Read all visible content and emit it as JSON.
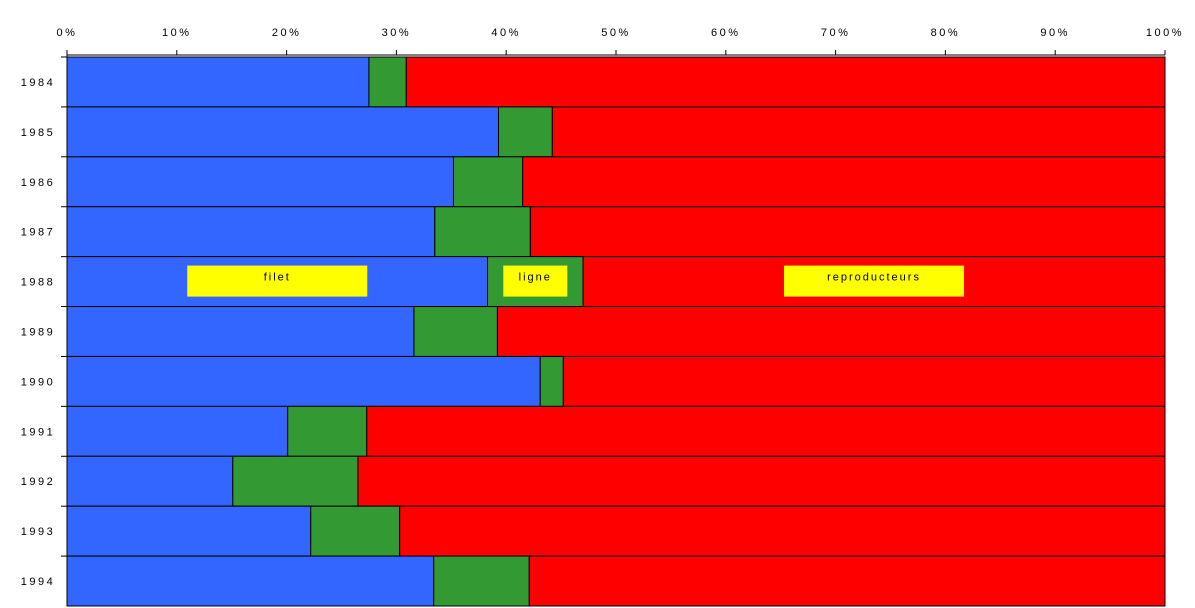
{
  "chart_data": {
    "type": "bar",
    "orientation": "horizontal",
    "stacked": "percent",
    "categories": [
      "1984",
      "1985",
      "1986",
      "1987",
      "1988",
      "1989",
      "1990",
      "1991",
      "1992",
      "1993",
      "1994"
    ],
    "series": [
      {
        "name": "filet",
        "color": "#3366ff",
        "values": [
          27.5,
          39.3,
          35.2,
          33.5,
          38.3,
          31.6,
          43.1,
          20.1,
          15.1,
          22.2,
          33.4
        ]
      },
      {
        "name": "ligne",
        "color": "#339933",
        "values": [
          3.4,
          4.9,
          6.3,
          8.7,
          8.7,
          7.6,
          2.1,
          7.2,
          11.4,
          8.1,
          8.7
        ]
      },
      {
        "name": "reproducteurs",
        "color": "#ff0000",
        "values": [
          69.1,
          55.8,
          58.5,
          57.8,
          53.0,
          60.8,
          54.8,
          72.7,
          73.5,
          69.7,
          57.9
        ]
      }
    ],
    "x_ticks": [
      "0%",
      "10%",
      "20%",
      "30%",
      "40%",
      "50%",
      "60%",
      "70%",
      "80%",
      "90%",
      "100%"
    ],
    "xlim": [
      0,
      100
    ],
    "title": "",
    "xlabel": "",
    "ylabel": "",
    "x_axis_position": "top",
    "grid": false,
    "legend": "inline labels in yellow boxes on the 1988 bar",
    "label_box_color": "#ffff00"
  }
}
